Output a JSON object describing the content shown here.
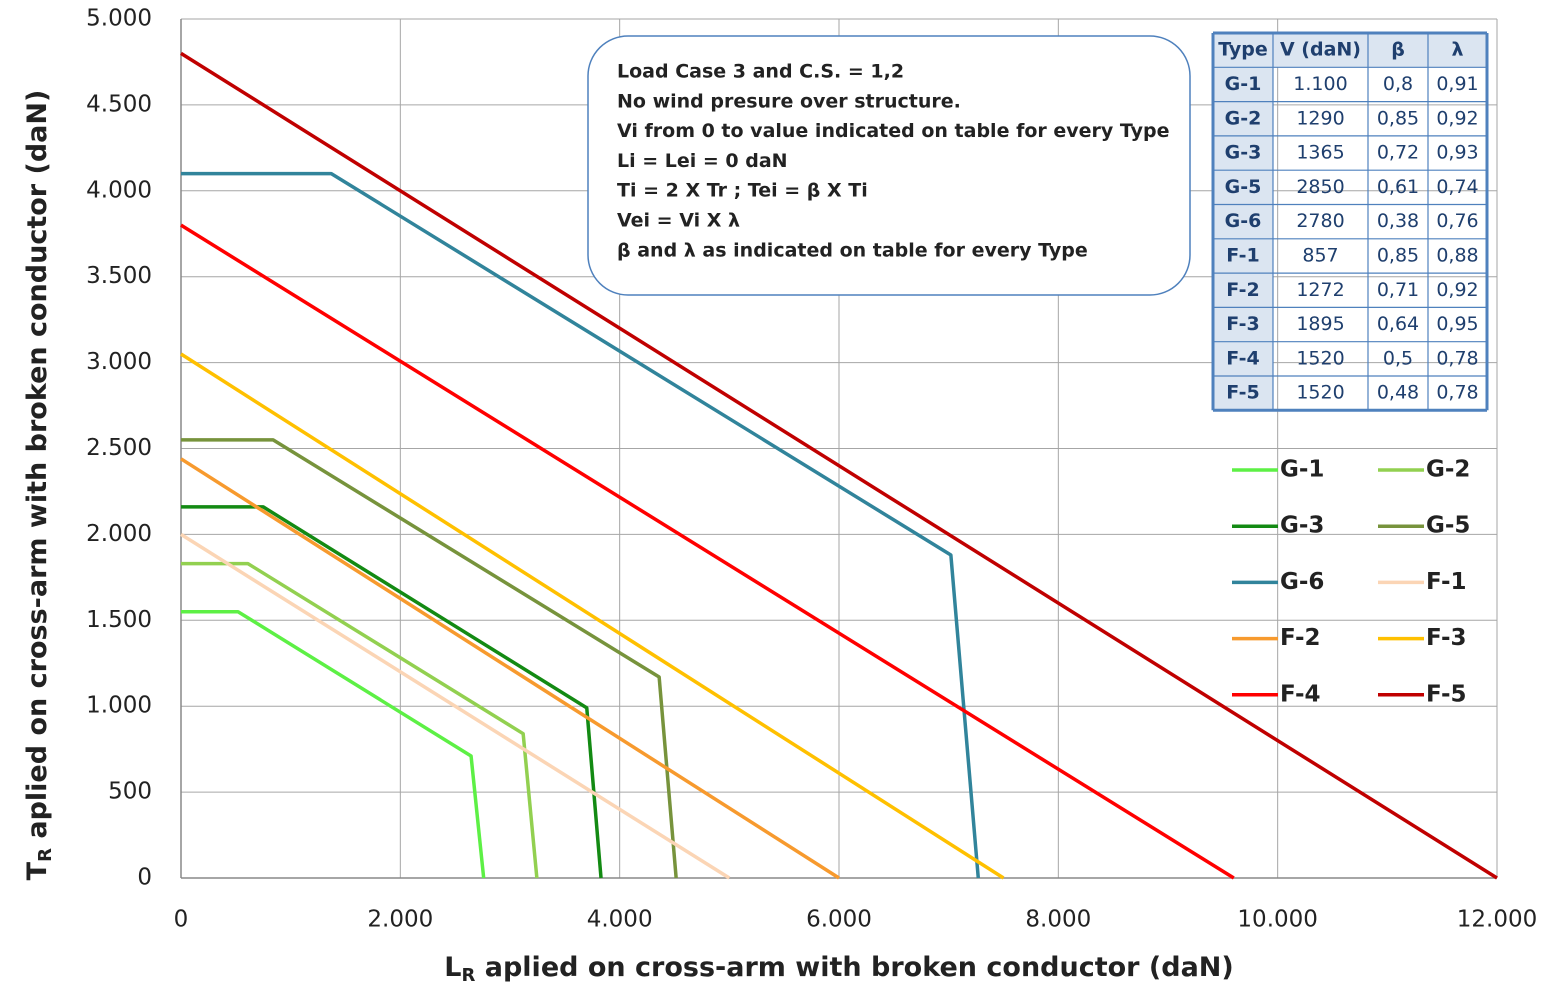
{
  "chart_data": {
    "type": "line",
    "xlabel": {
      "main": "L",
      "sub": "R",
      "rest": " aplied on cross-arm with broken conductor (daN)"
    },
    "ylabel": {
      "main": "T",
      "sub": "R",
      "rest": "  aplied on cross-arm with broken conductor (daN)"
    },
    "xlim": [
      0,
      12000
    ],
    "ylim": [
      0,
      5000
    ],
    "xticks": [
      0,
      {
        "value": 2000,
        "label": "2.000"
      },
      {
        "value": 4000,
        "label": "4.000"
      },
      {
        "value": 6000,
        "label": "6.000"
      },
      {
        "value": 8000,
        "label": "8.000"
      },
      {
        "value": 10000,
        "label": "10.000"
      },
      {
        "value": 12000,
        "label": "12.000"
      }
    ],
    "yticks": [
      0,
      500,
      {
        "value": 1000,
        "label": "1.000"
      },
      {
        "value": 1500,
        "label": "1.500"
      },
      {
        "value": 2000,
        "label": "2.000"
      },
      {
        "value": 2500,
        "label": "2.500"
      },
      {
        "value": 3000,
        "label": "3.000"
      },
      {
        "value": 3500,
        "label": "3.500"
      },
      {
        "value": 4000,
        "label": "4.000"
      },
      {
        "value": 4500,
        "label": "4.500"
      },
      {
        "value": 5000,
        "label": "5.000"
      }
    ],
    "grid": true,
    "legend": "right",
    "series": [
      {
        "name": "G-1",
        "color": "#5df045",
        "x": [
          0,
          520,
          2645,
          2760
        ],
        "values": [
          1550,
          1550,
          710,
          0
        ]
      },
      {
        "name": "G-2",
        "color": "#92d050",
        "x": [
          0,
          610,
          3120,
          3245
        ],
        "values": [
          1830,
          1830,
          840,
          0
        ]
      },
      {
        "name": "G-3",
        "color": "#138a13",
        "x": [
          0,
          750,
          3700,
          3830
        ],
        "values": [
          2160,
          2160,
          990,
          0
        ]
      },
      {
        "name": "G-5",
        "color": "#77933c",
        "x": [
          0,
          840,
          4360,
          4515
        ],
        "values": [
          2550,
          2550,
          1170,
          0
        ]
      },
      {
        "name": "G-6",
        "color": "#31849b",
        "x": [
          0,
          1370,
          7020,
          7270
        ],
        "values": [
          4100,
          4100,
          1880,
          0
        ]
      },
      {
        "name": "F-1",
        "color": "#fbd5b5",
        "x": [
          0,
          5000
        ],
        "values": [
          2000,
          0
        ]
      },
      {
        "name": "F-2",
        "color": "#f79a2e",
        "x": [
          0,
          6000
        ],
        "values": [
          2440,
          0
        ]
      },
      {
        "name": "F-3",
        "color": "#ffc000",
        "x": [
          0,
          7500
        ],
        "values": [
          3050,
          0
        ]
      },
      {
        "name": "F-4",
        "color": "#ff0000",
        "x": [
          0,
          9600
        ],
        "values": [
          3800,
          0
        ]
      },
      {
        "name": "F-5",
        "color": "#c00000",
        "x": [
          0,
          12000
        ],
        "values": [
          4800,
          0
        ]
      }
    ],
    "annotation": [
      "Load Case 3 and C.S. = 1,2",
      "No wind presure over structure.",
      "Vi from 0 to value indicated on table for every Type",
      "Li = Lei = 0 daN",
      "Ti = 2 X Tr ; Tei = β X Ti",
      "Vei = Vi X λ",
      "β and  λ as indicated on table for every Type"
    ],
    "table": {
      "header": [
        "Type",
        "V (daN)",
        "β",
        "λ"
      ],
      "rows": [
        [
          "G-1",
          "1.100",
          "0,8",
          "0,91"
        ],
        [
          "G-2",
          "1290",
          "0,85",
          "0,92"
        ],
        [
          "G-3",
          "1365",
          "0,72",
          "0,93"
        ],
        [
          "G-5",
          "2850",
          "0,61",
          "0,74"
        ],
        [
          "G-6",
          "2780",
          "0,38",
          "0,76"
        ],
        [
          "F-1",
          "857",
          "0,85",
          "0,88"
        ],
        [
          "F-2",
          "1272",
          "0,71",
          "0,92"
        ],
        [
          "F-3",
          "1895",
          "0,64",
          "0,95"
        ],
        [
          "F-4",
          "1520",
          "0,5",
          "0,78"
        ],
        [
          "F-5",
          "1520",
          "0,48",
          "0,78"
        ]
      ]
    }
  }
}
